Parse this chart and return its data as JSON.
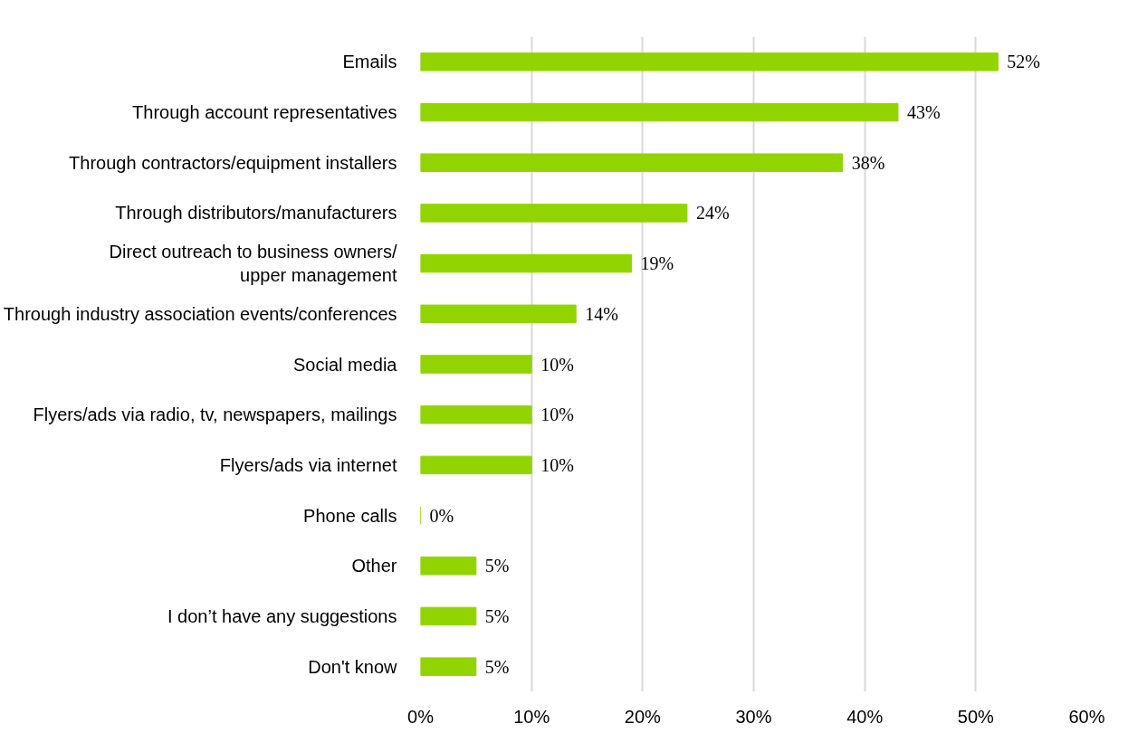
{
  "chart_data": {
    "type": "bar",
    "orientation": "horizontal",
    "categories": [
      "Emails",
      "Through account representatives",
      "Through contractors/equipment installers",
      "Through distributors/manufacturers",
      "Direct outreach to business owners/\nupper management",
      "Through industry association events/conferences",
      "Social media",
      "Flyers/ads via radio, tv, newspapers, mailings",
      "Flyers/ads via internet",
      "Phone calls",
      "Other",
      "I don’t have any suggestions",
      "Don't know"
    ],
    "values": [
      52,
      43,
      38,
      24,
      19,
      14,
      10,
      10,
      10,
      0,
      5,
      5,
      5
    ],
    "value_labels": [
      "52%",
      "43%",
      "38%",
      "24%",
      "19%",
      "14%",
      "10%",
      "10%",
      "10%",
      "0%",
      "5%",
      "5%",
      "5%"
    ],
    "color": "#92d400",
    "xlim": [
      0,
      60
    ],
    "xticks": [
      {
        "value": 0,
        "label": "0%"
      },
      {
        "value": 10,
        "label": "10%"
      },
      {
        "value": 20,
        "label": "20%"
      },
      {
        "value": 30,
        "label": "30%"
      },
      {
        "value": 40,
        "label": "40%"
      },
      {
        "value": 50,
        "label": "50%"
      },
      {
        "value": 60,
        "label": "60%"
      }
    ],
    "grid": "x"
  }
}
